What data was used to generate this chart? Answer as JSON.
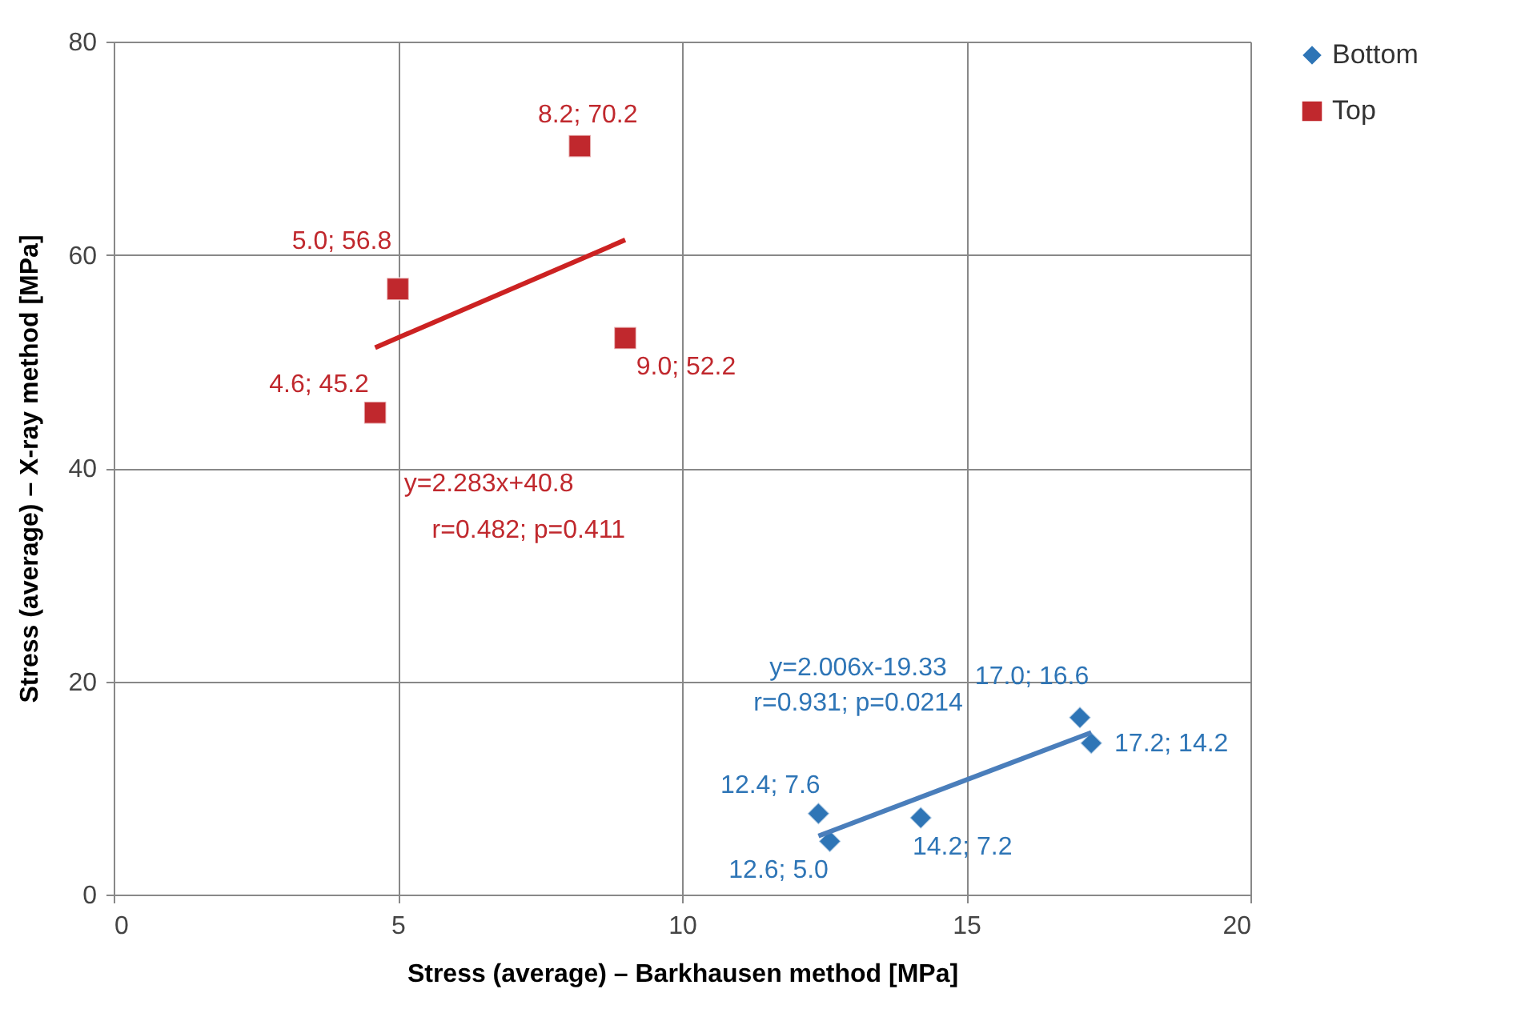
{
  "chart_data": {
    "type": "scatter",
    "xlabel": "Stress (average) – Barkhausen method [MPa]",
    "ylabel": "Stress (average) – X-ray method [MPa]",
    "xlim": [
      0,
      20
    ],
    "xticks": [
      0,
      5,
      10,
      15,
      20
    ],
    "ylim": [
      0,
      80
    ],
    "yticks": [
      0,
      20,
      40,
      60,
      80
    ],
    "grid": true,
    "legend": "right",
    "series": [
      {
        "name": "Bottom",
        "color": "#2e75b6",
        "marker": "diamond",
        "x": [
          12.4,
          12.6,
          14.2,
          17.0,
          17.2
        ],
        "values": [
          7.6,
          5.0,
          7.2,
          16.6,
          14.2
        ],
        "value_labels": [
          "12.4; 7.6",
          "12.6; 5.0",
          "14.2; 7.2",
          "17.0; 16.6",
          "17.2; 14.2"
        ]
      },
      {
        "name": "Top",
        "color": "#c0282d",
        "marker": "square",
        "x": [
          4.6,
          5.0,
          8.2,
          9.0
        ],
        "values": [
          45.2,
          56.8,
          70.2,
          52.2
        ],
        "value_labels": [
          "4.6; 45.2",
          "5.0; 56.8",
          "8.2; 70.2",
          "9.0; 52.2"
        ]
      },
      {
        "type": "line",
        "color": "#4a7ebb",
        "x": [
          12.4,
          17.2
        ],
        "values": [
          5.5,
          15.2
        ]
      },
      {
        "type": "line",
        "color": "#cc2222",
        "x": [
          4.6,
          9.0
        ],
        "values": [
          51.3,
          61.4
        ]
      }
    ],
    "annotations": [
      "y=2.283x+40.8",
      "r=0.482; p=0.411",
      "y=2.006x-19.33",
      "r=0.931; p=0.0214"
    ]
  }
}
